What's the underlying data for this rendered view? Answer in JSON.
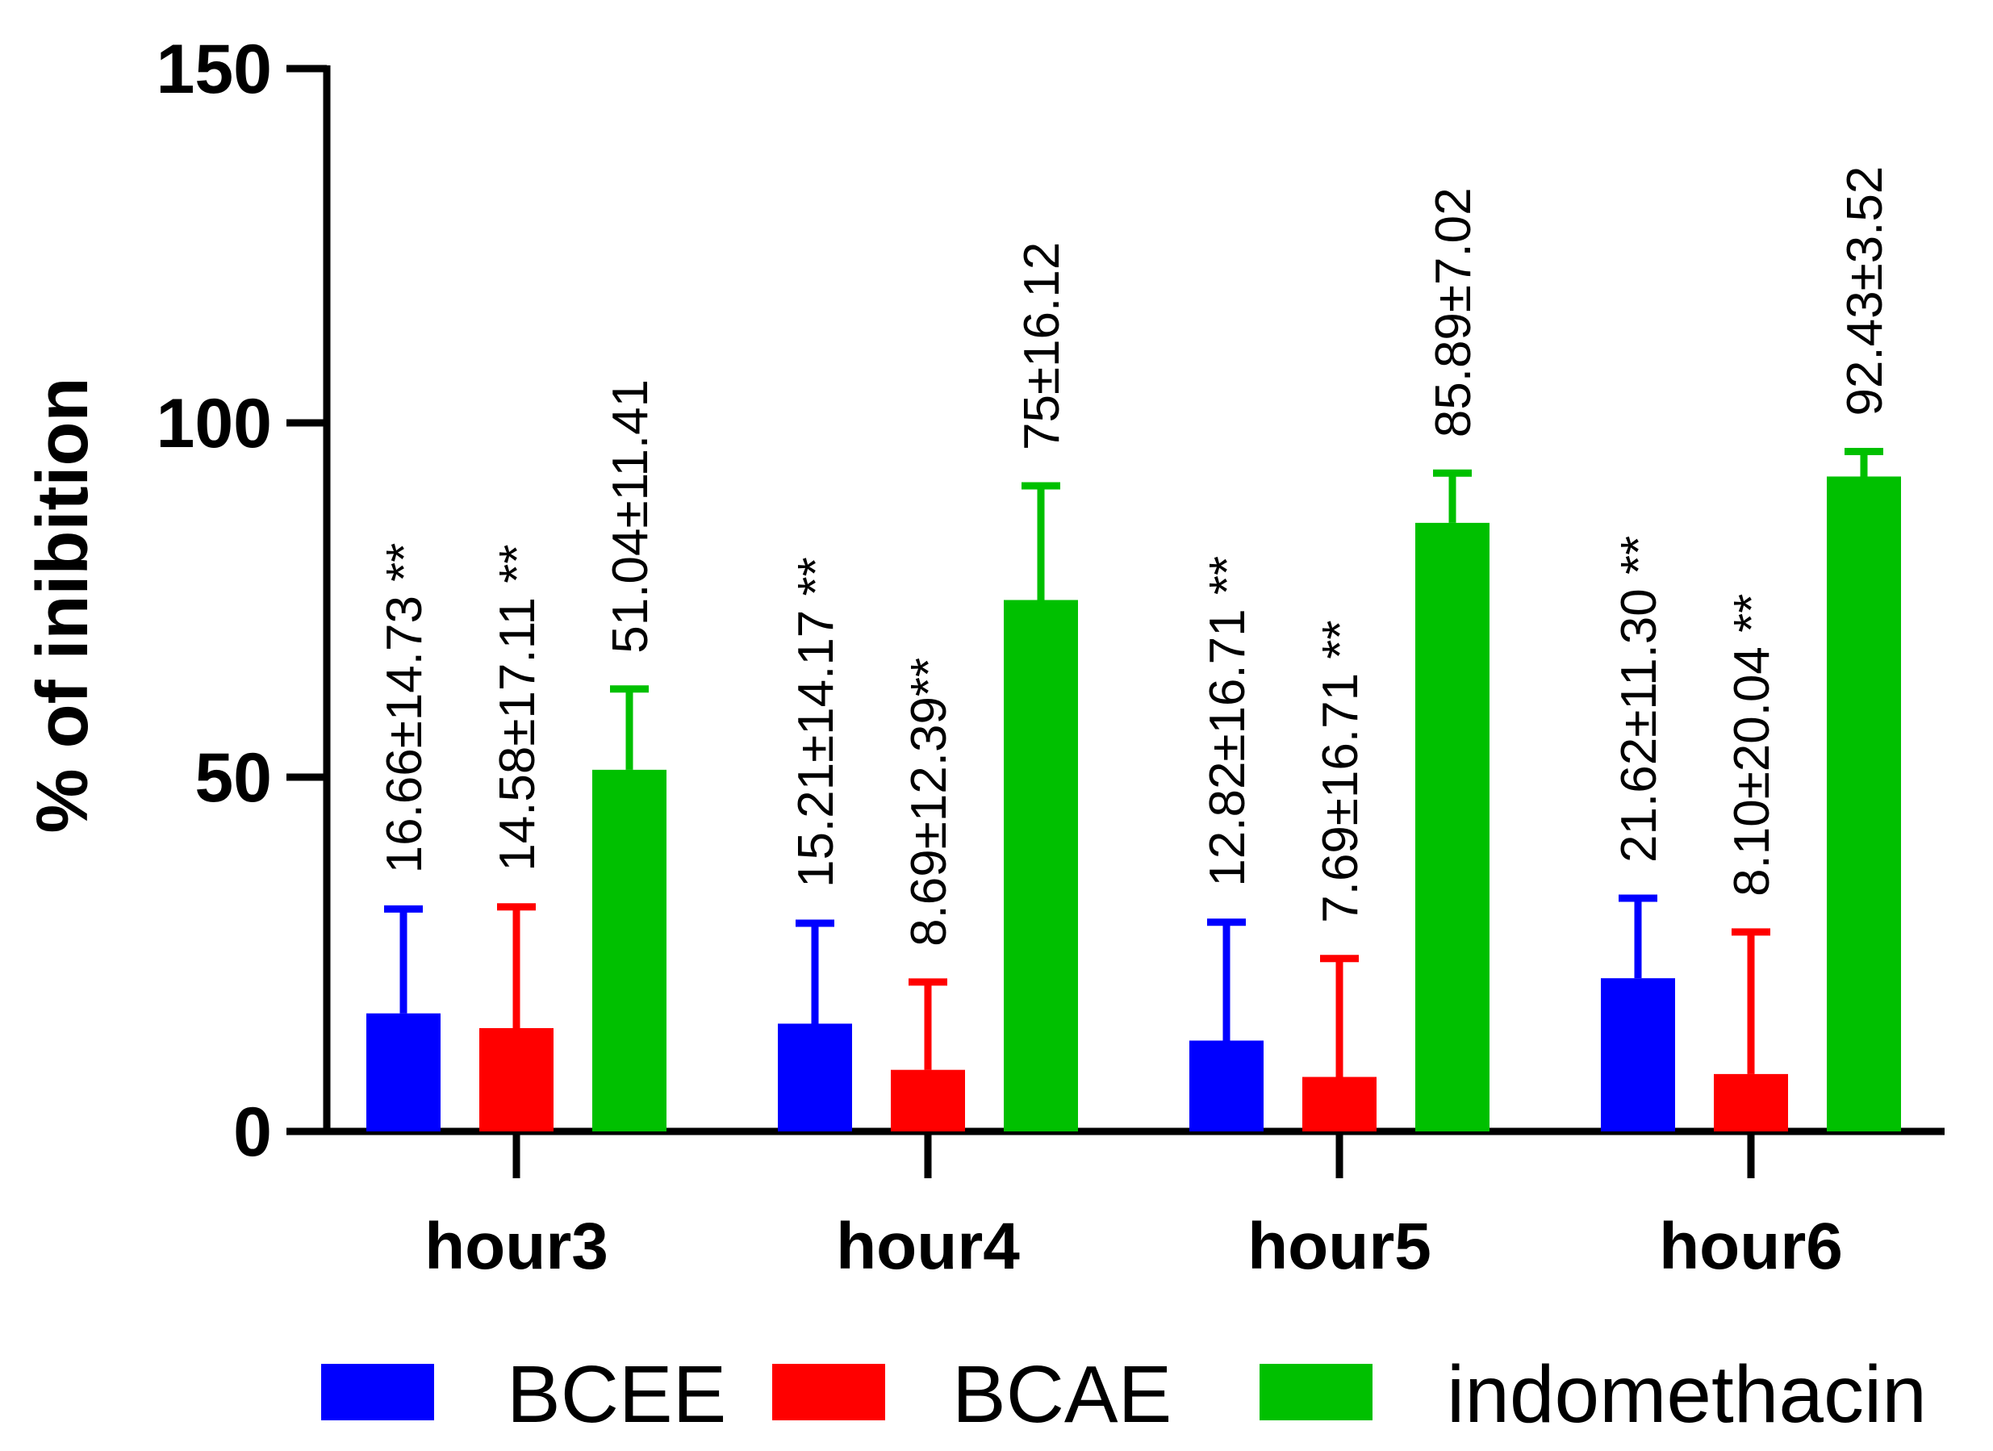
{
  "chart_data": {
    "type": "bar",
    "ylabel": "% of inibition",
    "xlabel": "",
    "ylim": [
      0,
      150
    ],
    "yticks": [
      0,
      50,
      100,
      150
    ],
    "categories": [
      "hour3",
      "hour4",
      "hour5",
      "hour6"
    ],
    "series": [
      {
        "name": "BCEE",
        "color": "#0000ff",
        "values": [
          16.66,
          15.21,
          12.82,
          21.62
        ],
        "errors": [
          14.73,
          14.17,
          16.71,
          11.3
        ],
        "labels": [
          "16.66±14.73 **",
          "15.21±14.17 **",
          "12.82±16.71 **",
          "21.62±11.30 **"
        ]
      },
      {
        "name": "BCAE",
        "color": "#ff0000",
        "values": [
          14.58,
          8.69,
          7.69,
          8.1
        ],
        "errors": [
          17.11,
          12.39,
          16.71,
          20.04
        ],
        "labels": [
          "14.58±17.11 **",
          "8.69±12.39**",
          "7.69±16.71 **",
          "8.10±20.04 **"
        ]
      },
      {
        "name": "indomethacin",
        "color": "#00c000",
        "values": [
          51.04,
          75,
          85.89,
          92.43
        ],
        "errors": [
          11.41,
          16.12,
          7.02,
          3.52
        ],
        "labels": [
          "51.04±11.41",
          "75±16.12",
          "85.89±7.02",
          "92.43±3.52"
        ]
      }
    ],
    "legend_position": "bottom"
  }
}
